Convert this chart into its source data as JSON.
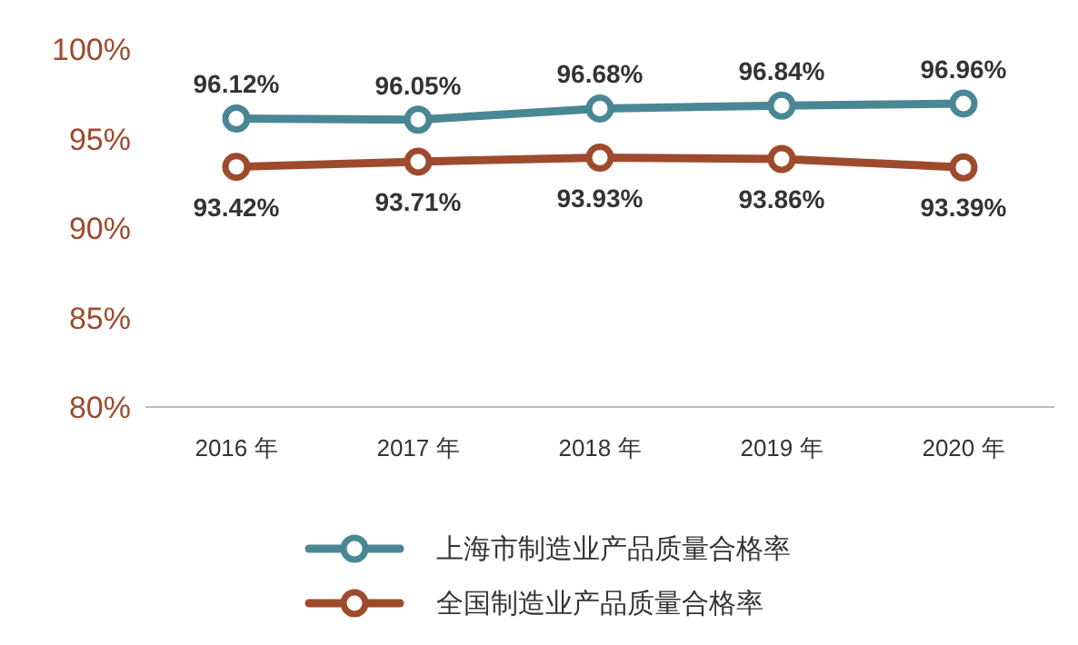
{
  "chart_data": {
    "type": "line",
    "categories": [
      "2016 年",
      "2017 年",
      "2018 年",
      "2019 年",
      "2020 年"
    ],
    "ylim": [
      80,
      100
    ],
    "yticks": [
      {
        "value": 80,
        "label": "80%"
      },
      {
        "value": 85,
        "label": "85%"
      },
      {
        "value": 90,
        "label": "90%"
      },
      {
        "value": 95,
        "label": "95%"
      },
      {
        "value": 100,
        "label": "100%"
      }
    ],
    "series": [
      {
        "name": "上海市制造业产品质量合格率",
        "color": "#4a8795",
        "values": [
          96.12,
          96.05,
          96.68,
          96.84,
          96.96
        ],
        "value_labels": [
          "96.12%",
          "96.05%",
          "96.68%",
          "96.84%",
          "96.96%"
        ]
      },
      {
        "name": "全国制造业产品质量合格率",
        "color": "#9e4a2c",
        "values": [
          93.42,
          93.71,
          93.93,
          93.86,
          93.39
        ],
        "value_labels": [
          "93.42%",
          "93.71%",
          "93.93%",
          "93.86%",
          "93.39%"
        ]
      }
    ],
    "marker": "circle",
    "line_style": "solid",
    "legend": "bottom",
    "grid": false
  }
}
